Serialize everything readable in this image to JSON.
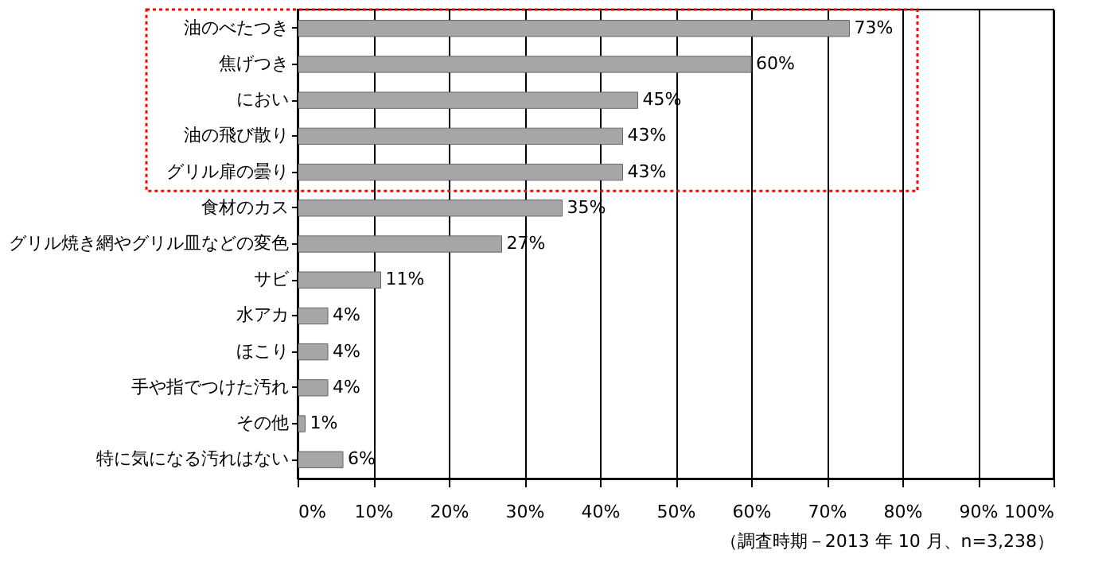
{
  "chart_data": {
    "type": "bar",
    "orientation": "horizontal",
    "categories": [
      "油のべたつき",
      "焦げつき",
      "におい",
      "油の飛び散り",
      "グリル扉の曇り",
      "食材のカス",
      "グリル焼き網やグリル皿などの変色",
      "サビ",
      "水アカ",
      "ほこり",
      "手や指でつけた汚れ",
      "その他",
      "特に気になる汚れはない"
    ],
    "values": [
      73,
      60,
      45,
      43,
      43,
      35,
      27,
      11,
      4,
      4,
      4,
      1,
      6
    ],
    "value_labels": [
      "73%",
      "60%",
      "45%",
      "43%",
      "43%",
      "35%",
      "27%",
      "11%",
      "4%",
      "4%",
      "4%",
      "1%",
      "6%"
    ],
    "color": "#a6a6a6",
    "xlim": [
      0,
      100
    ],
    "xticks": [
      {
        "value": 0,
        "label": "0%"
      },
      {
        "value": 10,
        "label": "10%"
      },
      {
        "value": 20,
        "label": "20%"
      },
      {
        "value": 30,
        "label": "30%"
      },
      {
        "value": 40,
        "label": "40%"
      },
      {
        "value": 50,
        "label": "50%"
      },
      {
        "value": 60,
        "label": "60%"
      },
      {
        "value": 70,
        "label": "70%"
      },
      {
        "value": 80,
        "label": "80%"
      },
      {
        "value": 90,
        "label": "90%"
      },
      {
        "value": 100,
        "label": "100%"
      }
    ],
    "grid": "x",
    "annotations": [
      "（調査時期－2013 年 10 月、n=3,238）"
    ]
  }
}
